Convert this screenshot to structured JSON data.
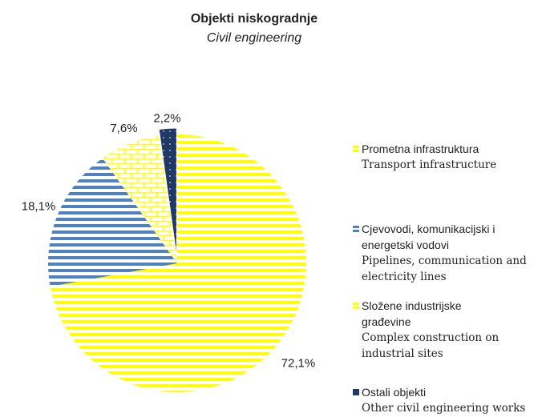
{
  "chart_data": {
    "type": "pie",
    "title": "Objekti niskogradnje",
    "subtitle": "Civil engineering",
    "categories": [
      "Prometna infrastruktura",
      "Cjevovodi, komunikacijski i energetski vodovi",
      "Složene industrijske građevine",
      "Ostali objekti"
    ],
    "categories_en": [
      "Transport infrastructure",
      "Pipelines, communication and electricity lines",
      "Complex construction on industrial sites",
      "Other civil engineering works"
    ],
    "values": [
      72.1,
      18.1,
      7.6,
      2.2
    ],
    "value_labels": [
      "72,1%",
      "18,1%",
      "7,6%",
      "2,2%"
    ],
    "colors": [
      "#ffff00",
      "#4f81bd",
      "#ffff00",
      "#1f3864"
    ],
    "legend": "right"
  }
}
